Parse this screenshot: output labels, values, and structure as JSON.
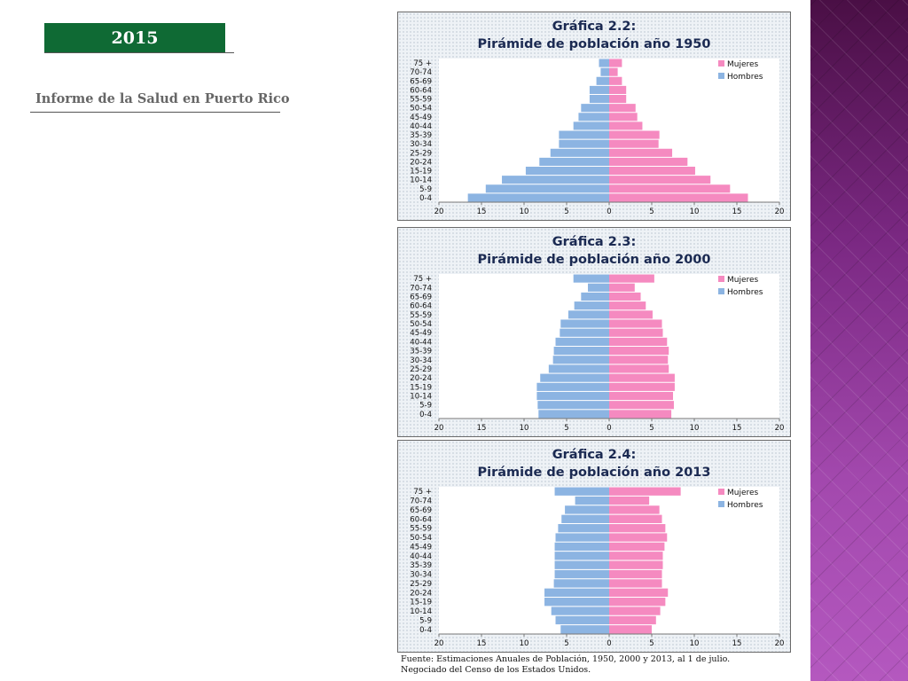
{
  "header": {
    "year": "2015",
    "report_title": "Informe de la Salud en Puerto Rico"
  },
  "colors": {
    "mujeres": "#f58ac0",
    "hombres": "#8cb4e2",
    "badge": "#0f6a34",
    "title": "#1b2a52"
  },
  "source": {
    "line1": "Fuente: Estimaciones Anuales de Población, 1950, 2000 y 2013, al 1 de julio.",
    "line2": "Negociado del Censo de los Estados Unidos."
  },
  "chart_data": [
    {
      "type": "bar",
      "title": "Gráfica 2.2:",
      "subtitle": "Pirámide de población año 1950",
      "categories": [
        "0-4",
        "5-9",
        "10-14",
        "15-19",
        "20-24",
        "25-29",
        "30-34",
        "35-39",
        "40-44",
        "45-49",
        "50-54",
        "55-59",
        "60-64",
        "65-69",
        "70-74",
        "75 +"
      ],
      "series": [
        {
          "name": "Mujeres",
          "values": [
            16.3,
            14.2,
            11.9,
            10.1,
            9.2,
            7.4,
            5.8,
            5.9,
            3.9,
            3.3,
            3.1,
            2.0,
            2.0,
            1.5,
            1.0,
            1.5
          ]
        },
        {
          "name": "Hombres",
          "values": [
            16.6,
            14.5,
            12.6,
            9.8,
            8.2,
            6.9,
            5.9,
            5.9,
            4.2,
            3.6,
            3.3,
            2.3,
            2.3,
            1.5,
            1.0,
            1.2
          ]
        }
      ],
      "x_ticks": [
        "20",
        "15",
        "10",
        "5",
        "0",
        "5",
        "10",
        "15",
        "20"
      ],
      "xlim": [
        -20,
        20
      ],
      "legend": "top-right"
    },
    {
      "type": "bar",
      "title": "Gráfica 2.3:",
      "subtitle": "Pirámide de población año 2000",
      "categories": [
        "0-4",
        "5-9",
        "10-14",
        "15-19",
        "20-24",
        "25-29",
        "30-34",
        "35-39",
        "40-44",
        "45-49",
        "50-54",
        "55-59",
        "60-64",
        "65-69",
        "70-74",
        "75 +"
      ],
      "series": [
        {
          "name": "Mujeres",
          "values": [
            7.3,
            7.6,
            7.5,
            7.7,
            7.7,
            7.0,
            6.9,
            7.0,
            6.8,
            6.3,
            6.2,
            5.1,
            4.3,
            3.7,
            3.0,
            5.3
          ]
        },
        {
          "name": "Hombres",
          "values": [
            8.3,
            8.4,
            8.5,
            8.5,
            8.1,
            7.1,
            6.6,
            6.5,
            6.3,
            5.8,
            5.7,
            4.8,
            4.1,
            3.3,
            2.5,
            4.2
          ]
        }
      ],
      "x_ticks": [
        "20",
        "15",
        "10",
        "5",
        "0",
        "5",
        "10",
        "15",
        "20"
      ],
      "xlim": [
        -20,
        20
      ],
      "legend": "top-right"
    },
    {
      "type": "bar",
      "title": "Gráfica 2.4:",
      "subtitle": "Pirámide de población año 2013",
      "categories": [
        "0-4",
        "5-9",
        "10-14",
        "15-19",
        "20-24",
        "25-29",
        "30-34",
        "35-39",
        "40-44",
        "45-49",
        "50-54",
        "55-59",
        "60-64",
        "65-69",
        "70-74",
        "75 +"
      ],
      "series": [
        {
          "name": "Mujeres",
          "values": [
            5.0,
            5.5,
            6.0,
            6.6,
            6.9,
            6.2,
            6.2,
            6.3,
            6.3,
            6.5,
            6.8,
            6.6,
            6.2,
            5.9,
            4.7,
            8.4
          ]
        },
        {
          "name": "Hombres",
          "values": [
            5.7,
            6.3,
            6.8,
            7.6,
            7.6,
            6.5,
            6.4,
            6.4,
            6.4,
            6.4,
            6.3,
            6.0,
            5.6,
            5.2,
            4.0,
            6.4
          ]
        }
      ],
      "x_ticks": [
        "20",
        "15",
        "10",
        "5",
        "0",
        "5",
        "10",
        "15",
        "20"
      ],
      "xlim": [
        -20,
        20
      ],
      "legend": "top-right"
    }
  ]
}
